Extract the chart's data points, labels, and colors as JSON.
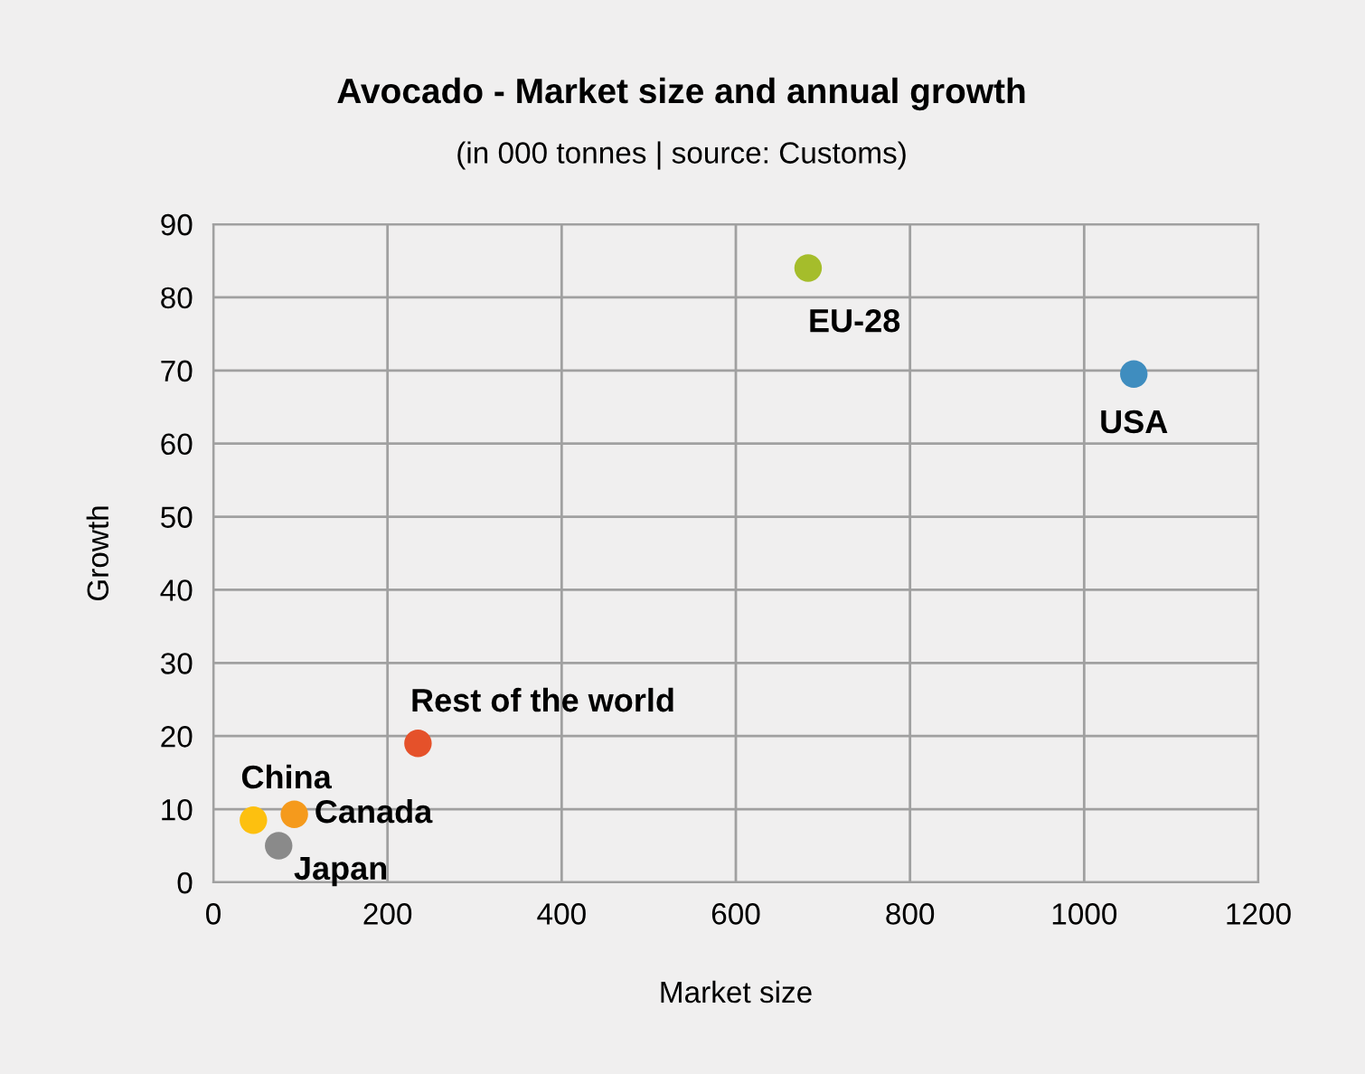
{
  "chart_data": {
    "type": "scatter",
    "title": "Avocado - Market size and annual growth",
    "subtitle": "(in 000 tonnes | source: Customs)",
    "xlabel": "Market size",
    "ylabel": "Growth",
    "series": [
      {
        "name": "EU-28",
        "color": "#a5bd2b",
        "x": [
          683
        ],
        "values": [
          84
        ]
      },
      {
        "name": "USA",
        "color": "#3f8dbf",
        "x": [
          1057
        ],
        "values": [
          69.5
        ]
      },
      {
        "name": "Rest of the world",
        "color": "#e5512a",
        "x": [
          235
        ],
        "values": [
          19
        ]
      },
      {
        "name": "China",
        "color": "#fdc00f",
        "x": [
          46
        ],
        "values": [
          8.5
        ]
      },
      {
        "name": "Canada",
        "color": "#f59a1c",
        "x": [
          93
        ],
        "values": [
          9.3
        ]
      },
      {
        "name": "Japan",
        "color": "#8a8a8a",
        "x": [
          75
        ],
        "values": [
          5
        ]
      }
    ],
    "xlim": [
      0,
      1200
    ],
    "xticks": [
      0,
      200,
      400,
      600,
      800,
      1000,
      1200
    ],
    "ylim": [
      0,
      90
    ],
    "yticks": [
      0,
      10,
      20,
      30,
      40,
      50,
      60,
      70,
      80,
      90
    ],
    "grid": true,
    "marker": "circle",
    "legend": false
  }
}
